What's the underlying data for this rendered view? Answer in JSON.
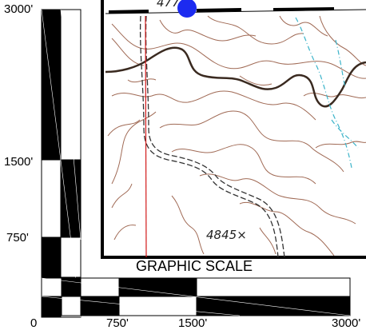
{
  "vertical_scale": {
    "labels": [
      "3000'",
      "1500'",
      "750'"
    ]
  },
  "horizontal_scale": {
    "title": "GRAPHIC SCALE",
    "labels": [
      "0",
      "750'",
      "1500'",
      "3000'"
    ]
  },
  "map": {
    "elevation_label": "4845",
    "spot_marker": "×",
    "top_partial_label": "477",
    "marker_color": "#1c2bf0",
    "contour_color": "#a06a55",
    "index_contour_color": "#3a2a20",
    "stream_color": "#3bb3c9",
    "road_color": "#333333",
    "section_line_color": "#d21a1a"
  }
}
